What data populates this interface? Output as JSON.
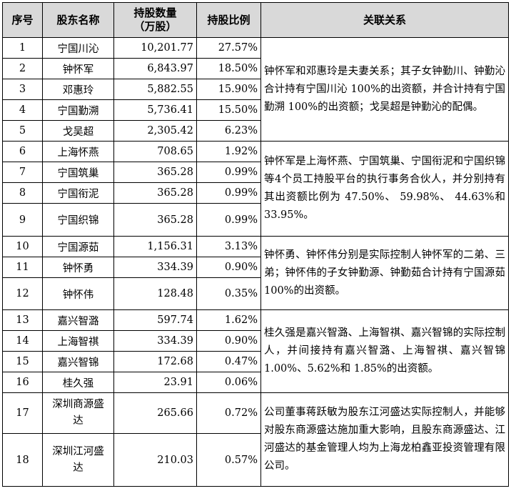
{
  "table": {
    "headers": [
      "序号",
      "股东名称",
      "持股数量\n（万股）",
      "持股比例",
      "关联关系"
    ],
    "rows": [
      {
        "no": "1",
        "name": "宁国川沁",
        "shares": "10,201.77",
        "ratio": "27.57%"
      },
      {
        "no": "2",
        "name": "钟怀军",
        "shares": "6,843.97",
        "ratio": "18.50%"
      },
      {
        "no": "3",
        "name": "邓惠玲",
        "shares": "5,882.55",
        "ratio": "15.90%"
      },
      {
        "no": "4",
        "name": "宁国勤溯",
        "shares": "5,736.41",
        "ratio": "15.50%"
      },
      {
        "no": "5",
        "name": "戈吴超",
        "shares": "2,305.42",
        "ratio": "6.23%"
      },
      {
        "no": "6",
        "name": "上海怀燕",
        "shares": "708.65",
        "ratio": "1.92%"
      },
      {
        "no": "7",
        "name": "宁国筑巢",
        "shares": "365.28",
        "ratio": "0.99%"
      },
      {
        "no": "8",
        "name": "宁国衔泥",
        "shares": "365.28",
        "ratio": "0.99%"
      },
      {
        "no": "9",
        "name": "宁国织锦",
        "shares": "365.28",
        "ratio": "0.99%"
      },
      {
        "no": "10",
        "name": "宁国源茹",
        "shares": "1,156.31",
        "ratio": "3.13%"
      },
      {
        "no": "11",
        "name": "钟怀勇",
        "shares": "334.39",
        "ratio": "0.90%"
      },
      {
        "no": "12",
        "name": "钟怀伟",
        "shares": "128.48",
        "ratio": "0.35%"
      },
      {
        "no": "13",
        "name": "嘉兴智潞",
        "shares": "597.74",
        "ratio": "1.62%"
      },
      {
        "no": "14",
        "name": "上海智祺",
        "shares": "334.39",
        "ratio": "0.90%"
      },
      {
        "no": "15",
        "name": "嘉兴智锦",
        "shares": "172.68",
        "ratio": "0.47%"
      },
      {
        "no": "16",
        "name": "桂久强",
        "shares": "23.91",
        "ratio": "0.06%"
      },
      {
        "no": "17",
        "name": "深圳商源盛\n达",
        "shares": "265.66",
        "ratio": "0.72%"
      },
      {
        "no": "18",
        "name": "深圳江河盛\n达",
        "shares": "210.03",
        "ratio": "0.57%"
      }
    ],
    "relations": [
      "钟怀军和邓惠玲是夫妻关系；其子女钟勤川、钟勤沁合计持有宁国川沁 100%的出资额，并合计持有宁国勤溯 100%的出资额；戈吴超是钟勤沁的配偶。",
      "钟怀军是上海怀燕、宁国筑巢、宁国衔泥和宁国织锦等4个员工持股平台的执行事务合伙人，并分别持有其出资额比例为 47.50%、 59.98%、 44.63%和33.95%。",
      "钟怀勇、钟怀伟分别是实际控制人钟怀军的二弟、三弟；钟怀伟的子女钟勤源、钟勤茹合计持有宁国源茹 100%的出资额。",
      "桂久强是嘉兴智潞、上海智祺、嘉兴智锦的实际控制人，并间接持有嘉兴智潞、上海智祺、嘉兴智锦 1.00%、5.62%和 1.85%的出资额。",
      "公司董事蒋跃敏为股东江河盛达实际控制人，并能够对股东商源盛达施加重大影响，且股东商源盛达、江河盛达的基金管理人均为上海龙柏鑫亚投资管理有限公司。"
    ]
  }
}
